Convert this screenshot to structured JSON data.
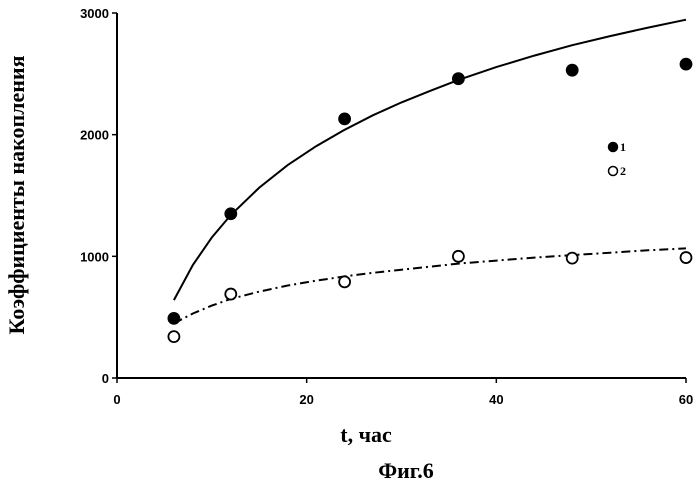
{
  "chart_data": {
    "type": "scatter",
    "ylabel": "Коэффициенты накопления",
    "xlabel": "t, час",
    "caption": "Фиг.6",
    "xlim": [
      0,
      60
    ],
    "ylim": [
      0,
      3000
    ],
    "x_ticks": [
      0,
      20,
      40,
      60
    ],
    "y_ticks": [
      0,
      1000,
      2000,
      3000
    ],
    "x_tick_labels": [
      "0",
      "20",
      "40",
      "60"
    ],
    "y_tick_labels": [
      "0",
      "1000",
      "2000",
      "3000"
    ],
    "grid": false,
    "legend_position": "right",
    "series": [
      {
        "name": "1",
        "marker": "filled-circle",
        "color": "#000000",
        "x": [
          6,
          12,
          24,
          36,
          48,
          60
        ],
        "y": [
          490,
          1350,
          2130,
          2460,
          2530,
          2580
        ],
        "trendline": {
          "style": "solid",
          "x": [
            6,
            8,
            10,
            12,
            15,
            18,
            21,
            24,
            27,
            30,
            33,
            36,
            40,
            44,
            48,
            52,
            56,
            60
          ],
          "y": [
            640,
            930,
            1155,
            1340,
            1565,
            1750,
            1905,
            2040,
            2160,
            2265,
            2360,
            2450,
            2555,
            2650,
            2735,
            2810,
            2880,
            2945
          ]
        }
      },
      {
        "name": "2",
        "marker": "open-circle",
        "color": "#000000",
        "x": [
          6,
          12,
          24,
          36,
          48,
          60
        ],
        "y": [
          340,
          690,
          790,
          1000,
          985,
          990
        ],
        "trendline": {
          "style": "dashdot",
          "x": [
            6,
            8,
            10,
            12,
            15,
            18,
            21,
            24,
            27,
            30,
            33,
            36,
            40,
            44,
            48,
            52,
            56,
            60
          ],
          "y": [
            450,
            530,
            595,
            650,
            710,
            760,
            800,
            835,
            865,
            890,
            915,
            940,
            965,
            990,
            1010,
            1030,
            1050,
            1065
          ]
        }
      }
    ]
  }
}
